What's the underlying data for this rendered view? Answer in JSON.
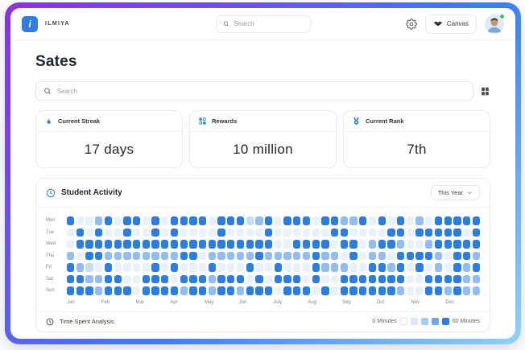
{
  "accent": "#2f7de1",
  "frame": {
    "gradient_from": "#8d33da",
    "gradient_mid": "#3d7ef0",
    "gradient_to": "#8fd2f8"
  },
  "topbar": {
    "logo_letter": "i",
    "brand": "ILMIYA",
    "search_placeholder": "Search",
    "canvas_label": "Canvas"
  },
  "page": {
    "title": "Sates",
    "search_placeholder": "Search"
  },
  "stats": [
    {
      "icon": "flame-icon",
      "label": "Current Streak",
      "value": "17 days"
    },
    {
      "icon": "rewards-grid-icon",
      "label": "Rewards",
      "value": "10 million"
    },
    {
      "icon": "rank-medal-icon",
      "label": "Current Rank",
      "value": "7th"
    }
  ],
  "activity": {
    "title": "Student Activity",
    "period_label": "This Year",
    "footer_label": "Time Spent Analysis",
    "legend": {
      "min_label": "0 Minutes",
      "max_label": "60 Minutes"
    },
    "chart_data": {
      "type": "heatmap",
      "rows": [
        "Mon",
        "Tue",
        "Wed",
        "Thu",
        "Fri",
        "Sat",
        "Sun"
      ],
      "months": [
        "Jan",
        "Feb",
        "Mar",
        "Apr",
        "May",
        "Jun",
        "July",
        "Aug",
        "Sep",
        "Oct",
        "Nov",
        "Dec"
      ],
      "value_scale": {
        "min": 0,
        "max": 60,
        "unit": "minutes"
      },
      "levels": [
        "#e9f1fd",
        "#c7dcf8",
        "#93bcf2",
        "#5d9beb",
        "#2b7de2"
      ],
      "legend_colors": [
        "#ffffff",
        "#dce8fb",
        "#a9c8f5",
        "#74a7ee",
        "#2b7de2"
      ],
      "cells": [
        "40024044040444404441240444044224040402044444",
        "04040040040400004000040000004400004404444404",
        "04444444444444444444440044440440244200244444",
        "20442222222244022222422222422040220444420442",
        "42104000040400040004004000422200442404020424",
        "44224400444044424440404440400444444400444422",
        "44424440444424424424440444040444444200442422"
      ]
    }
  }
}
